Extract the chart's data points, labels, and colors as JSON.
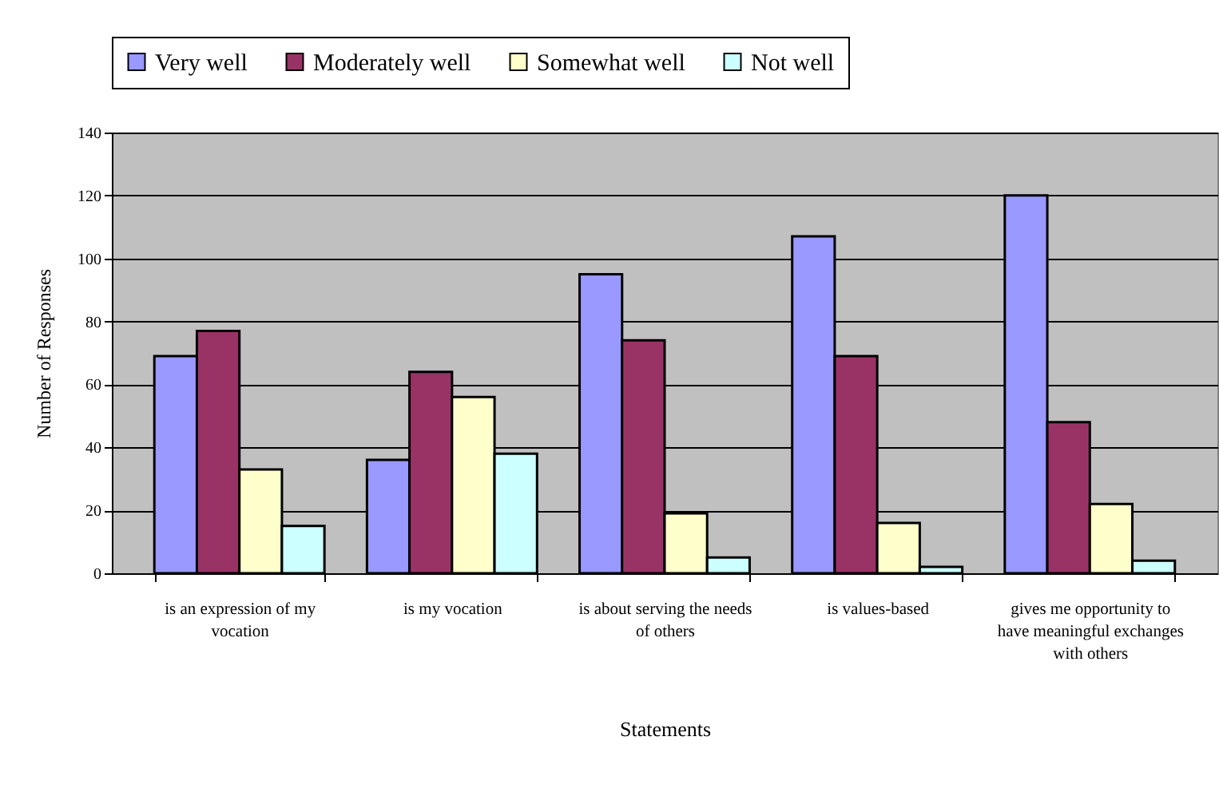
{
  "chart_data": {
    "type": "bar",
    "xlabel": "Statements",
    "ylabel": "Number of Responses",
    "categories": [
      "is an expression of my vocation",
      "is my vocation",
      "is about serving the needs of others",
      "is values-based",
      "gives me opportunity to have meaningful exchanges with others"
    ],
    "series": [
      {
        "name": "Very well",
        "color": "#9999ff",
        "values": [
          69,
          36,
          95,
          107,
          120
        ]
      },
      {
        "name": "Moderately well",
        "color": "#993366",
        "values": [
          77,
          64,
          74,
          69,
          48
        ]
      },
      {
        "name": "Somewhat well",
        "color": "#ffffcc",
        "values": [
          33,
          56,
          19,
          16,
          22
        ]
      },
      {
        "name": "Not well",
        "color": "#ccffff",
        "values": [
          15,
          38,
          5,
          2,
          4
        ]
      }
    ],
    "ylim": [
      0,
      140
    ],
    "yticks": [
      0,
      20,
      40,
      60,
      80,
      100,
      120,
      140
    ],
    "grid": "y",
    "legend": "top"
  }
}
